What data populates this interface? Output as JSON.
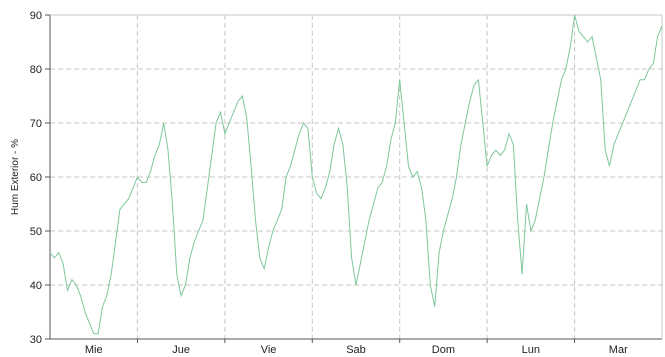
{
  "chart_data": {
    "type": "line",
    "ylabel": "Hum Exterior - %",
    "ylim": [
      30,
      90
    ],
    "yticks": [
      30,
      40,
      50,
      60,
      70,
      80,
      90
    ],
    "days": [
      "Mie",
      "Jue",
      "Vie",
      "Sab",
      "Dom",
      "Lun",
      "Mar"
    ],
    "xlim": [
      0,
      7.0
    ],
    "grid": true,
    "line_color": "#7fc79a",
    "grid_color": "#c7c7c7",
    "series": [
      {
        "x": [
          0.0,
          0.05,
          0.1,
          0.15,
          0.2,
          0.25,
          0.3,
          0.35,
          0.4,
          0.45,
          0.5,
          0.55,
          0.6,
          0.65,
          0.7,
          0.75,
          0.8,
          0.85,
          0.9,
          0.95,
          1.0,
          1.05,
          1.1,
          1.15,
          1.2,
          1.25,
          1.3,
          1.35,
          1.4,
          1.45,
          1.5,
          1.55,
          1.6,
          1.65,
          1.7,
          1.75,
          1.8,
          1.85,
          1.9,
          1.95,
          2.0,
          2.05,
          2.1,
          2.15,
          2.2,
          2.25,
          2.3,
          2.35,
          2.4,
          2.45,
          2.5,
          2.55,
          2.6,
          2.65,
          2.7,
          2.75,
          2.8,
          2.85,
          2.9,
          2.95,
          3.0,
          3.05,
          3.1,
          3.15,
          3.2,
          3.25,
          3.3,
          3.35,
          3.4,
          3.45,
          3.5,
          3.55,
          3.6,
          3.65,
          3.7,
          3.75,
          3.8,
          3.85,
          3.9,
          3.95,
          4.0,
          4.05,
          4.1,
          4.15,
          4.2,
          4.25,
          4.3,
          4.35,
          4.4,
          4.45,
          4.5,
          4.55,
          4.6,
          4.65,
          4.7,
          4.75,
          4.8,
          4.85,
          4.9,
          4.95,
          5.0,
          5.05,
          5.1,
          5.15,
          5.2,
          5.25,
          5.3,
          5.35,
          5.4,
          5.45,
          5.5,
          5.55,
          5.6,
          5.65,
          5.7,
          5.75,
          5.8,
          5.85,
          5.9,
          5.95,
          6.0,
          6.05,
          6.1,
          6.15,
          6.2,
          6.25,
          6.3,
          6.35,
          6.4,
          6.45,
          6.5,
          6.55,
          6.6,
          6.65,
          6.7,
          6.75,
          6.8,
          6.85,
          6.9,
          6.95,
          7.0
        ],
        "y": [
          46,
          45,
          46,
          44,
          39,
          41,
          40,
          38,
          35,
          33,
          31,
          31,
          36,
          38,
          42,
          48,
          54,
          55,
          56,
          58,
          60,
          59,
          59,
          61,
          64,
          66,
          70,
          65,
          55,
          42,
          38,
          40,
          45,
          48,
          50,
          52,
          58,
          64,
          70,
          72,
          68,
          70,
          72,
          74,
          75,
          71,
          62,
          52,
          45,
          43,
          47,
          50,
          52,
          54,
          60,
          62,
          65,
          68,
          70,
          69,
          60,
          57,
          56,
          58,
          61,
          66,
          69,
          66,
          58,
          45,
          40,
          44,
          48,
          52,
          55,
          58,
          59,
          62,
          67,
          70,
          78,
          70,
          62,
          60,
          61,
          58,
          52,
          40,
          36,
          46,
          50,
          53,
          56,
          60,
          66,
          70,
          74,
          77,
          78,
          70,
          62,
          64,
          65,
          64,
          65,
          68,
          66,
          52,
          42,
          55,
          50,
          52,
          56,
          60,
          65,
          70,
          74,
          78,
          80,
          84,
          90,
          87,
          86,
          85,
          86,
          82,
          78,
          65,
          62,
          66,
          68,
          70,
          72,
          74,
          76,
          78,
          78,
          80,
          81,
          86,
          88
        ]
      }
    ]
  }
}
